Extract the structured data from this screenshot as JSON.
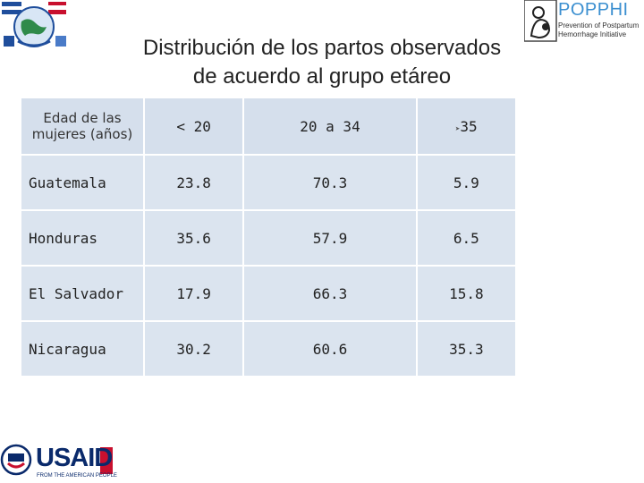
{
  "title": {
    "line1": "Distribución de los partos observados",
    "line2": "de acuerdo al grupo etáreo"
  },
  "logos": {
    "poppphi": {
      "name": "POPPHI",
      "subtitle": "Prevention of Postpartum Hemorrhage Initiative",
      "color": "#3b8fd0"
    },
    "usaid": {
      "name": "USAID",
      "subtitle": "FROM THE AMERICAN PEOPLE",
      "color": "#0a2a6b",
      "accent": "#c8102e"
    }
  },
  "table": {
    "header": {
      "label": "Edad de las mujeres (años)",
      "columns": [
        "< 20",
        "20 a 34",
        "35"
      ]
    },
    "rows": [
      {
        "country": "Guatemala",
        "values": [
          "23.8",
          "70.3",
          "5.9"
        ]
      },
      {
        "country": "Honduras",
        "values": [
          "35.6",
          "57.9",
          "6.5"
        ]
      },
      {
        "country": "El Salvador",
        "values": [
          "17.9",
          "66.3",
          "15.8"
        ]
      },
      {
        "country": "Nicaragua",
        "values": [
          "30.2",
          "60.6",
          "35.3"
        ]
      }
    ]
  },
  "colors": {
    "cell_background": "#dbe4ef",
    "header_background": "#d5dfec"
  }
}
